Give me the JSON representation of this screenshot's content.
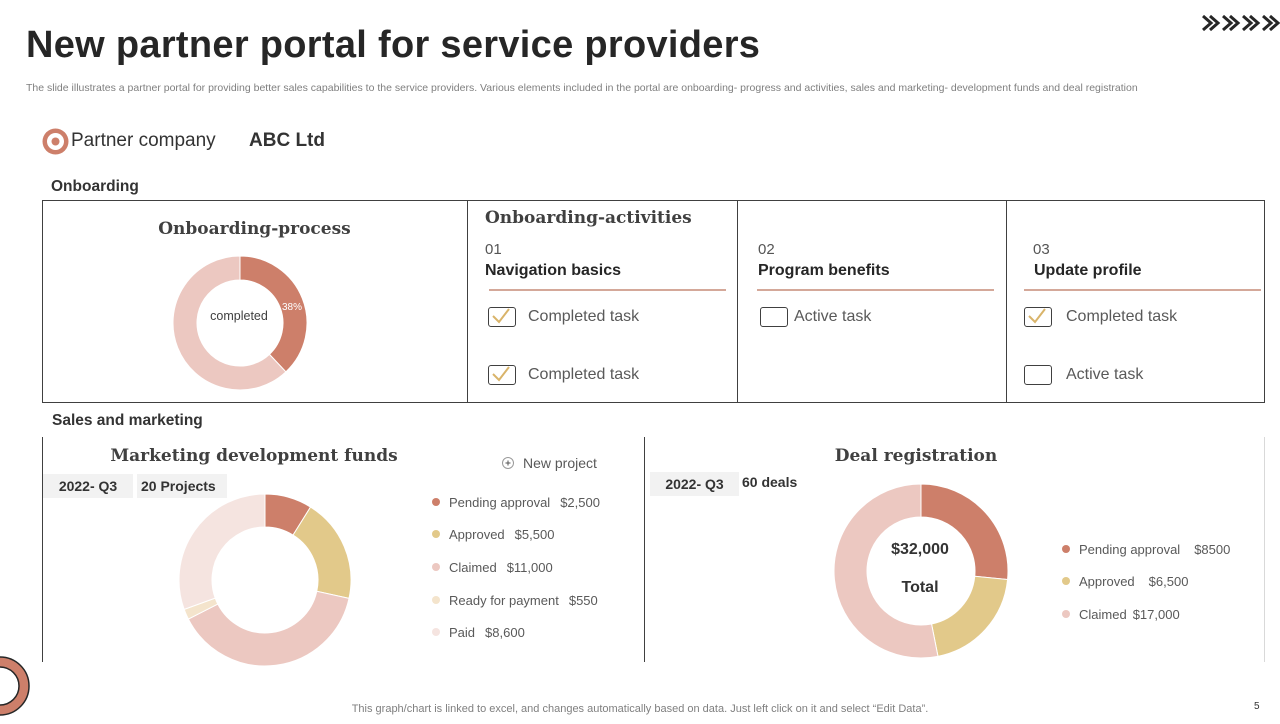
{
  "header": {
    "title": "New partner portal for service providers",
    "subtitle": "The slide illustrates a partner portal for providing better sales capabilities to the service providers. Various elements included in the portal are onboarding- progress and activities, sales and marketing- development funds and deal registration"
  },
  "partner": {
    "label": "Partner company",
    "value": "ABC Ltd"
  },
  "onboarding": {
    "section_label": "Onboarding",
    "process": {
      "title": "Onboarding-process",
      "center_label": "completed",
      "percent_label": "38%"
    },
    "activities_title": "Onboarding-activities",
    "activities": [
      {
        "num": "01",
        "title": "Navigation basics",
        "tasks": [
          {
            "label": "Completed task",
            "checked": true
          },
          {
            "label": "Completed task",
            "checked": true
          }
        ]
      },
      {
        "num": "02",
        "title": "Program benefits",
        "tasks": [
          {
            "label": "Active task",
            "checked": false
          }
        ]
      },
      {
        "num": "03",
        "title": "Update profile",
        "tasks": [
          {
            "label": "Completed task",
            "checked": true
          },
          {
            "label": "Active task",
            "checked": false
          }
        ]
      }
    ]
  },
  "sales": {
    "section_label": "Sales and marketing",
    "mdf": {
      "title": "Marketing development funds",
      "period": "2022- Q3",
      "projects": "20 Projects",
      "new_project_label": "New project",
      "legend": [
        {
          "label": "Pending approval",
          "value": "$2,500"
        },
        {
          "label": "Approved",
          "value": "$5,500"
        },
        {
          "label": "Claimed",
          "value": "$11,000"
        },
        {
          "label": "Ready for payment",
          "value": "$550"
        },
        {
          "label": "Paid",
          "value": "$8,600"
        }
      ]
    },
    "deals": {
      "title": "Deal registration",
      "period": "2022- Q3",
      "count": "60 deals",
      "total_value": "$32,000",
      "total_label": "Total",
      "legend": [
        {
          "label": "Pending approval",
          "value": "$8500"
        },
        {
          "label": "Approved",
          "value": "$6,500"
        },
        {
          "label": "Claimed",
          "value": "$17,000"
        }
      ]
    }
  },
  "footer": {
    "note": "This graph/chart is linked to excel,  and changes automatically based on data. Just left click on it and select “Edit Data”.",
    "page_number": "5"
  },
  "colors": {
    "terracotta": "#cd7f6a",
    "gold": "#e2c98a",
    "pink": "#ecc8c1",
    "cream": "#f4e4cc",
    "light_pink": "#f5e4e0"
  },
  "chart_data": [
    {
      "type": "pie",
      "title": "Onboarding-process",
      "categories": [
        "completed",
        ""
      ],
      "values": [
        38,
        62
      ]
    },
    {
      "type": "pie",
      "title": "Marketing development funds",
      "categories": [
        "Pending approval",
        "Approved",
        "Claimed",
        "Ready for payment",
        "Paid"
      ],
      "values": [
        2500,
        5500,
        11000,
        550,
        8600
      ]
    },
    {
      "type": "pie",
      "title": "Deal registration",
      "categories": [
        "Pending approval",
        "Approved",
        "Claimed"
      ],
      "values": [
        8500,
        6500,
        17000
      ]
    }
  ]
}
